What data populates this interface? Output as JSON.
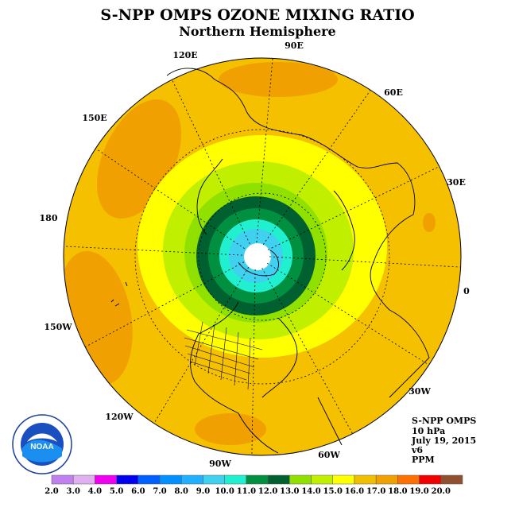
{
  "title": "S-NPP OMPS OZONE MIXING RATIO",
  "subtitle": "Northern Hemisphere",
  "longitude_labels": [
    "90E",
    "60E",
    "30E",
    "0",
    "30W",
    "60W",
    "90W",
    "120W",
    "150W",
    "180",
    "150E",
    "120E"
  ],
  "info": {
    "instrument": "S-NPP OMPS",
    "level": "10 hPa",
    "date": "July 19, 2015",
    "version": "v6",
    "units": "PPM"
  },
  "logo": {
    "text": "NOAA"
  },
  "colorbar": {
    "ticks": [
      "2.0",
      "3.0",
      "4.0",
      "5.0",
      "6.0",
      "7.0",
      "8.0",
      "9.0",
      "10.0",
      "11.0",
      "12.0",
      "13.0",
      "14.0",
      "15.0",
      "16.0",
      "17.0",
      "18.0",
      "19.0",
      "20.0"
    ],
    "colors": [
      "#c080f0",
      "#e0b0f0",
      "#f000f0",
      "#0000f0",
      "#0060ff",
      "#0090ff",
      "#20b0ff",
      "#40d0f0",
      "#20f0d0",
      "#009040",
      "#006030",
      "#90e000",
      "#c0f000",
      "#ffff00",
      "#f0c000",
      "#f0a000",
      "#ff7000",
      "#f00000",
      "#905030"
    ]
  },
  "colors": {
    "land_outline": "#000000",
    "grid": "#000000",
    "background": "#ffffff"
  }
}
